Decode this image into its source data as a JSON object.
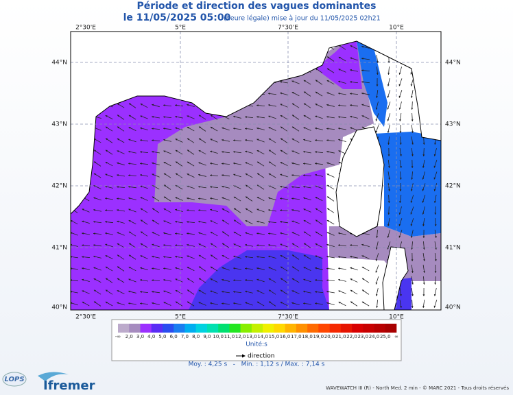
{
  "title": "Période et direction des vagues dominantes",
  "subtitle": {
    "date": "le 11/05/2025 05:00",
    "note": "(heure légale) mise à jour du 11/05/2025 02h21"
  },
  "map": {
    "longitude_labels": [
      "2°30'E",
      "5°E",
      "7°30'E",
      "10°E"
    ],
    "latitude_labels": [
      "44°N",
      "43°N",
      "42°N",
      "41°N",
      "40°N"
    ]
  },
  "colorbar": {
    "labels": [
      "-∞",
      "2,0",
      "3,0",
      "4,0",
      "5,0",
      "6,0",
      "7,0",
      "8,0",
      "9,0",
      "10,0",
      "11,0",
      "12,0",
      "13,0",
      "14,0",
      "15,0",
      "16,0",
      "17,0",
      "18,0",
      "19,0",
      "20,0",
      "21,0",
      "22,0",
      "23,0",
      "24,0",
      "25,0",
      "∞"
    ],
    "colors": [
      "#bcaacb",
      "#a68bbf",
      "#9b30ff",
      "#5a2cf5",
      "#2a4cf0",
      "#1a7df0",
      "#00aef0",
      "#00d2e0",
      "#00e0b0",
      "#00e070",
      "#22e620",
      "#88ee00",
      "#c4f000",
      "#f0f000",
      "#ffd800",
      "#ffb400",
      "#ff9000",
      "#ff6a00",
      "#ff4600",
      "#f52800",
      "#e61400",
      "#d80000",
      "#c80000",
      "#b80000",
      "#a80000"
    ],
    "unit": "Unité:s"
  },
  "legend": {
    "arrow_label": "direction"
  },
  "stats": "Moy. : 4,25 s   -   Min. : 1,12 s / Max. : 7,14 s",
  "footer": "WAVEWATCH III (R) - North Med. 2 min - © MARC 2021 - Tous droits réservés",
  "logos": [
    "LOPS",
    "Ifremer"
  ]
}
